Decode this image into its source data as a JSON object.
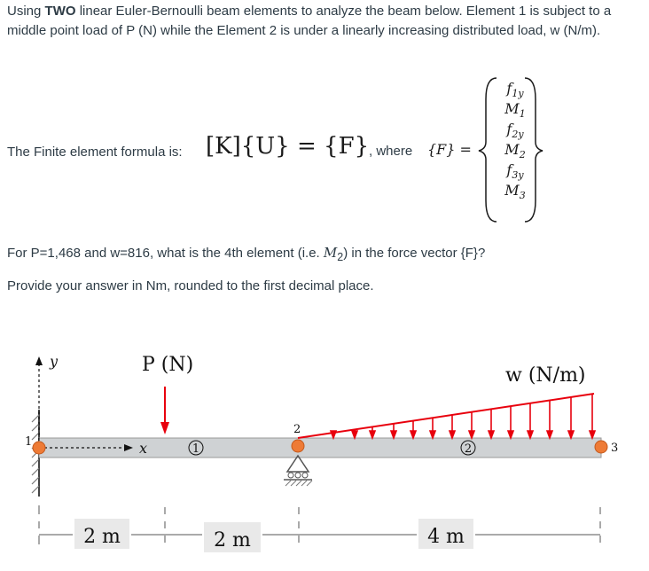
{
  "intro": {
    "prefix": "Using ",
    "bold": "TWO",
    "rest": " linear Euler-Bernoulli beam elements to analyze the beam below. Element 1 is subject to a middle point load of P (N) while the Element 2 is under a linearly increasing distributed load, w (N/m)."
  },
  "formula": {
    "label": "The Finite element formula is:",
    "kuf": "[K]{U} = {F}",
    "where": ", where",
    "f_eq": "{F} =",
    "vector": [
      "f1y",
      "M1",
      "f2y",
      "M2",
      "f3y",
      "M3"
    ]
  },
  "question": {
    "line1_prefix": "For P=1,468 and w=816, what is the 4th element (i.e. ",
    "line1_math": "M",
    "line1_sub": "2",
    "line1_suffix": ") in the force vector {F}?",
    "line2": "Provide your answer in Nm, rounded to the first decimal place."
  },
  "diagram": {
    "y_axis": "y",
    "x_axis": "x",
    "load_P": "P (N)",
    "load_w": "w (N/m)",
    "node_labels": [
      "1",
      "2",
      "3"
    ],
    "element_labels": [
      "1",
      "2"
    ],
    "dimensions": [
      "2 m",
      "2 m",
      "4 m"
    ],
    "colors": {
      "load": "#e8000d",
      "node": "#ee7b36",
      "beam": "#cfd2d4"
    }
  }
}
